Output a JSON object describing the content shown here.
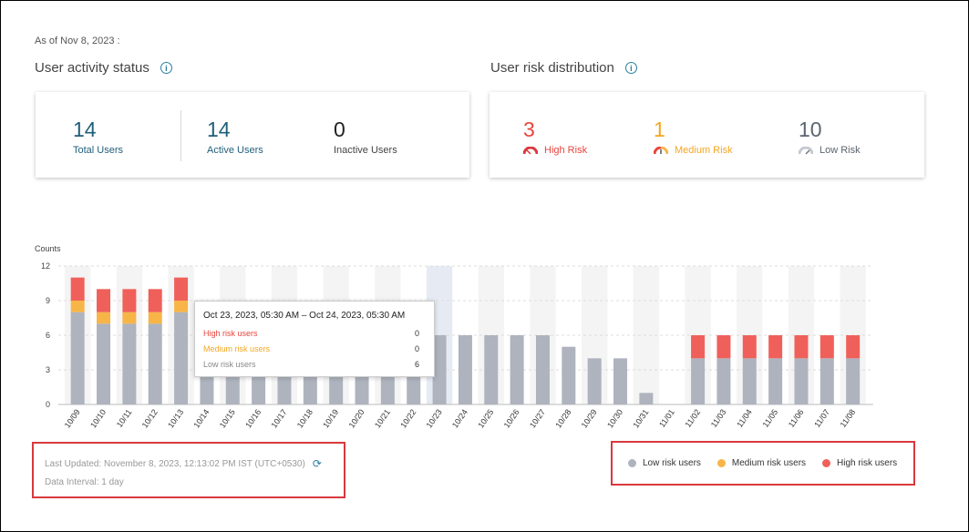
{
  "as_of": "As of Nov 8, 2023 :",
  "activity": {
    "title": "User activity status",
    "total": {
      "value": "14",
      "label": "Total Users"
    },
    "active": {
      "value": "14",
      "label": "Active Users"
    },
    "inactive": {
      "value": "0",
      "label": "Inactive Users"
    }
  },
  "risk": {
    "title": "User risk distribution",
    "high": {
      "value": "3",
      "label": "High Risk"
    },
    "medium": {
      "value": "1",
      "label": "Medium Risk"
    },
    "low": {
      "value": "10",
      "label": "Low Risk"
    }
  },
  "colors": {
    "low": "#aeb3be",
    "medium": "#f7b548",
    "high": "#f0605a",
    "accent": "#1f5f7a"
  },
  "chart_data": {
    "type": "bar",
    "stacked": true,
    "ylabel": "Counts",
    "ylim": [
      0,
      12
    ],
    "yticks": [
      0,
      3,
      6,
      9,
      12
    ],
    "categories": [
      "10/09",
      "10/10",
      "10/11",
      "10/12",
      "10/13",
      "10/14",
      "10/15",
      "10/16",
      "10/17",
      "10/18",
      "10/19",
      "10/20",
      "10/21",
      "10/22",
      "10/23",
      "10/24",
      "10/25",
      "10/26",
      "10/27",
      "10/28",
      "10/29",
      "10/30",
      "10/31",
      "11/01",
      "11/02",
      "11/03",
      "11/04",
      "11/05",
      "11/06",
      "11/07",
      "11/08"
    ],
    "series": [
      {
        "name": "Low risk users",
        "color": "#aeb3be",
        "values": [
          8,
          7,
          7,
          7,
          8,
          6,
          6,
          6,
          6,
          6,
          6,
          6,
          6,
          6,
          6,
          6,
          6,
          6,
          6,
          5,
          4,
          4,
          1,
          0,
          4,
          4,
          4,
          4,
          4,
          4,
          4
        ]
      },
      {
        "name": "Medium risk users",
        "color": "#f7b548",
        "values": [
          1,
          1,
          1,
          1,
          1,
          0,
          0,
          0,
          0,
          0,
          0,
          0,
          0,
          0,
          0,
          0,
          0,
          0,
          0,
          0,
          0,
          0,
          0,
          0,
          0,
          0,
          0,
          0,
          0,
          0,
          0
        ]
      },
      {
        "name": "High risk users",
        "color": "#f0605a",
        "values": [
          2,
          2,
          2,
          2,
          2,
          0,
          0,
          0,
          0,
          0,
          0,
          0,
          0,
          0,
          0,
          0,
          0,
          0,
          0,
          0,
          0,
          0,
          0,
          0,
          2,
          2,
          2,
          2,
          2,
          2,
          2
        ]
      }
    ],
    "highlight_index": 14,
    "grid": true
  },
  "tooltip": {
    "title": "Oct 23, 2023, 05:30 AM – Oct 24, 2023, 05:30 AM",
    "rows": [
      {
        "label": "High risk users",
        "value": "0",
        "color": "#f0605a"
      },
      {
        "label": "Medium risk users",
        "value": "0",
        "color": "#f7b548"
      },
      {
        "label": "Low risk users",
        "value": "6",
        "color": "#aeb3be"
      }
    ]
  },
  "footer": {
    "last_updated": "Last Updated: November 8, 2023, 12:13:02 PM IST (UTC+0530)",
    "interval": "Data Interval: 1 day"
  },
  "legend": [
    "Low risk users",
    "Medium risk users",
    "High risk users"
  ]
}
